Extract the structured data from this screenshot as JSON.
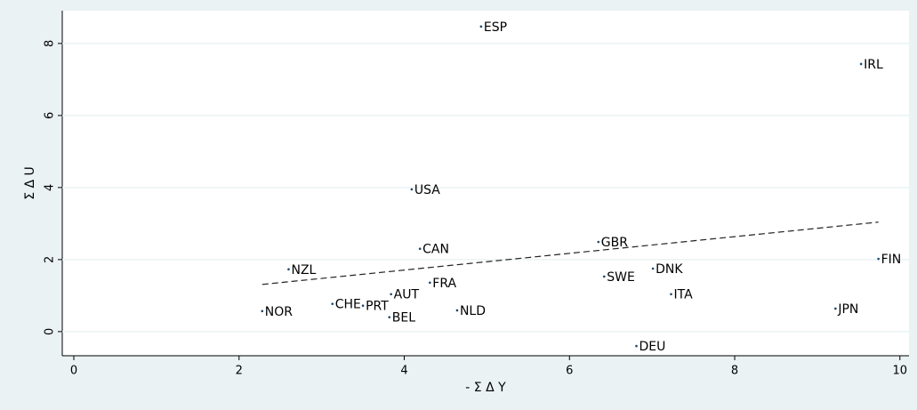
{
  "chart_data": {
    "type": "scatter",
    "x_label": "- Σ Δ Y",
    "y_label": "Σ Δ U",
    "labels": [
      "ESP",
      "IRL",
      "USA",
      "CAN",
      "GBR",
      "FIN",
      "NZL",
      "DNK",
      "SWE",
      "FRA",
      "AUT",
      "ITA",
      "CHE",
      "PRT",
      "NOR",
      "BEL",
      "NLD",
      "JPN",
      "DEU"
    ],
    "x": [
      4.93,
      9.53,
      4.09,
      4.19,
      6.35,
      9.74,
      2.6,
      7.01,
      6.42,
      4.31,
      3.84,
      7.23,
      3.13,
      3.5,
      2.28,
      3.82,
      4.64,
      9.22,
      6.81
    ],
    "y": [
      8.47,
      7.43,
      3.95,
      2.3,
      2.49,
      2.02,
      1.73,
      1.75,
      1.53,
      1.36,
      1.04,
      1.04,
      0.77,
      0.72,
      0.57,
      0.4,
      0.59,
      0.64,
      -0.4
    ],
    "color": "#1a476f",
    "fit": {
      "x": [
        2.28,
        9.74
      ],
      "y": [
        1.31,
        3.04
      ],
      "color": "#222222"
    },
    "xlim": [
      -0.14,
      10.11
    ],
    "ylim": [
      -0.67,
      8.91
    ],
    "xticks": [
      0,
      2,
      4,
      6,
      8,
      10
    ],
    "yticks": [
      0,
      2,
      4,
      6,
      8
    ],
    "grid": true
  }
}
